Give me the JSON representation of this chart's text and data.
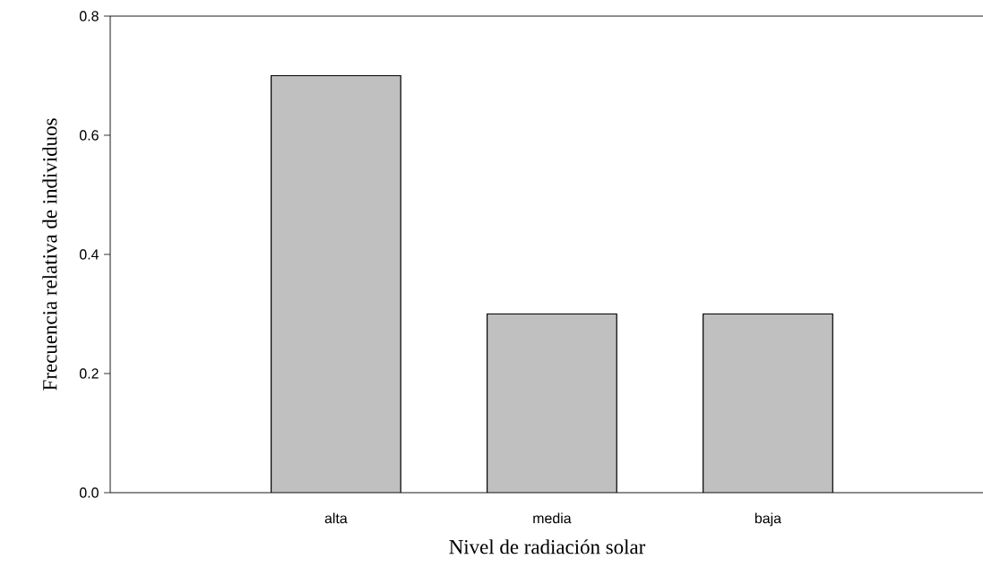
{
  "chart_data": {
    "type": "bar",
    "xlabel": "Nivel de radiación solar",
    "ylabel": "Frecuencia relativa de individuos",
    "categories": [
      "alta",
      "media",
      "baja"
    ],
    "values": [
      0.7,
      0.3,
      0.3
    ],
    "color": "#c0c0c0",
    "ylim": [
      0,
      0.8
    ],
    "yticks": [
      {
        "value": 0,
        "label": "0.0"
      },
      0.2,
      0.4,
      0.6,
      0.8
    ]
  }
}
